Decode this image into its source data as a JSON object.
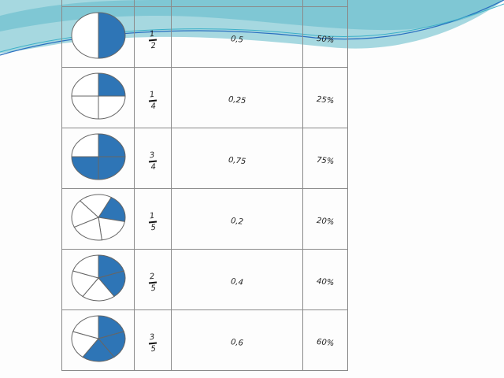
{
  "colors": {
    "fill": "#2e75b6",
    "wave_light": "#a6d8e0",
    "wave_mid": "#6fc0cf",
    "line_blue": "#2a6fc0"
  },
  "rows": [
    {
      "num": "1",
      "den": "2",
      "parts": 2,
      "filled": 1,
      "decimal": "0,5",
      "percent": "50%"
    },
    {
      "num": "1",
      "den": "4",
      "parts": 4,
      "filled": 1,
      "decimal": "0,25",
      "percent": "25%"
    },
    {
      "num": "3",
      "den": "4",
      "parts": 4,
      "filled": 3,
      "decimal": "0,75",
      "percent": "75%"
    },
    {
      "num": "1",
      "den": "5",
      "parts": 5,
      "filled": 1,
      "decimal": "0,2",
      "percent": "20%"
    },
    {
      "num": "2",
      "den": "5",
      "parts": 5,
      "filled": 2,
      "decimal": "0,4",
      "percent": "40%"
    },
    {
      "num": "3",
      "den": "5",
      "parts": 5,
      "filled": 3,
      "decimal": "0,6",
      "percent": "60%"
    }
  ]
}
